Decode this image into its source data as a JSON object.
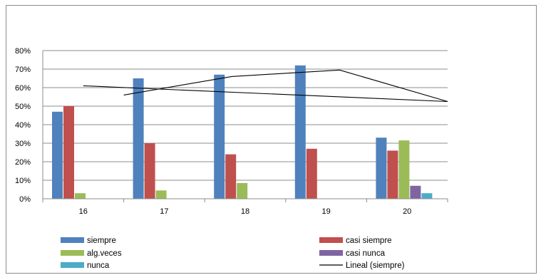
{
  "chart_data": {
    "type": "bar",
    "categories": [
      "16",
      "17",
      "18",
      "19",
      "20"
    ],
    "ylim": [
      0,
      0.8
    ],
    "yticks": [
      "0%",
      "10%",
      "20%",
      "30%",
      "40%",
      "50%",
      "60%",
      "70%",
      "80%"
    ],
    "grid": true,
    "legend_position": "bottom",
    "series": [
      {
        "name": "siempre",
        "color": "#4f81bd",
        "values": [
          0.47,
          0.65,
          0.67,
          0.72,
          0.33
        ]
      },
      {
        "name": "casi siempre",
        "color": "#c0504d",
        "values": [
          0.5,
          0.3,
          0.24,
          0.27,
          0.26
        ]
      },
      {
        "name": "alg.veces",
        "color": "#9bbb59",
        "values": [
          0.03,
          0.045,
          0.085,
          0,
          0.315
        ]
      },
      {
        "name": "casi nunca",
        "color": "#8064a2",
        "values": [
          0,
          0,
          0,
          0,
          0.07
        ]
      },
      {
        "name": "nunca",
        "color": "#4bacc6",
        "values": [
          0,
          0,
          0,
          0,
          0.03
        ]
      }
    ],
    "line_series": [
      {
        "name": "siempre",
        "color": "#000000",
        "x_range": [
          1.5,
          5.5
        ],
        "values": [
          0.56,
          0.66,
          0.695,
          0.525
        ]
      },
      {
        "name": "Lineal (siempre)",
        "color": "#000000",
        "values_at_ends": [
          0.61,
          0.525
        ]
      }
    ],
    "legend": [
      {
        "label": "siempre",
        "kind": "box",
        "color": "#4f81bd"
      },
      {
        "label": "casi siempre",
        "kind": "box",
        "color": "#c0504d"
      },
      {
        "label": "alg.veces",
        "kind": "box",
        "color": "#9bbb59"
      },
      {
        "label": "casi nunca",
        "kind": "box",
        "color": "#8064a2"
      },
      {
        "label": "nunca",
        "kind": "box",
        "color": "#4bacc6"
      },
      {
        "label": "Lineal (siempre)",
        "kind": "line",
        "color": "#000000"
      }
    ]
  }
}
